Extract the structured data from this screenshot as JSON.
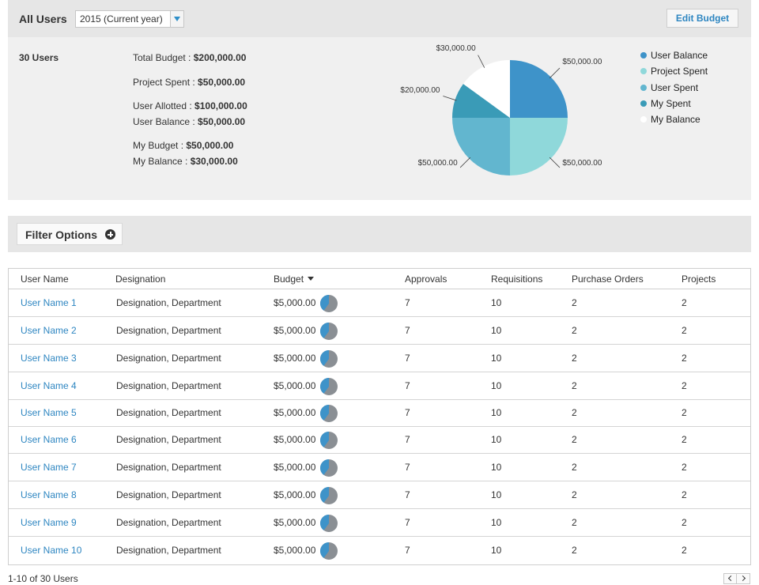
{
  "header": {
    "title": "All Users",
    "year_select": {
      "value": "2015 (Current year)"
    },
    "edit_button": "Edit Budget"
  },
  "summary": {
    "user_count": "30 Users",
    "stats": [
      {
        "label": "Total Budget : ",
        "value": "$200,000.00"
      },
      {
        "label": "Project Spent : ",
        "value": "$50,000.00"
      },
      {
        "label": "User Allotted : ",
        "value": "$100,000.00"
      },
      {
        "label": "User Balance : ",
        "value": "$50,000.00"
      },
      {
        "label": "My Budget : ",
        "value": "$50,000.00"
      },
      {
        "label": "My Balance : ",
        "value": "$30,000.00"
      }
    ]
  },
  "chart_data": {
    "type": "pie",
    "title": "",
    "slices": [
      {
        "name": "User Balance",
        "value": 50000,
        "label": "$50,000.00",
        "color": "#3e93c9"
      },
      {
        "name": "Project Spent",
        "value": 50000,
        "label": "$50,000.00",
        "color": "#8fd8da"
      },
      {
        "name": "User Spent",
        "value": 50000,
        "label": "$50,000.00",
        "color": "#62b6cf"
      },
      {
        "name": "My Spent",
        "value": 20000,
        "label": "$20,000.00",
        "color": "#3a9bb7"
      },
      {
        "name": "My Balance",
        "value": 30000,
        "label": "$30,000.00",
        "color": "#ffffff"
      }
    ],
    "legend_position": "right"
  },
  "filter": {
    "label": "Filter Options",
    "icon": "plus-circle-icon"
  },
  "table": {
    "columns": [
      "User Name",
      "Designation",
      "Budget",
      "Approvals",
      "Requisitions",
      "Purchase Orders",
      "Projects"
    ],
    "rows": [
      {
        "name": "User Name 1",
        "designation": "Designation, Department",
        "budget": "$5,000.00",
        "budget_used_fraction": 0.4,
        "approvals": "7",
        "requisitions": "10",
        "purchase_orders": "2",
        "projects": "2"
      },
      {
        "name": "User Name 2",
        "designation": "Designation, Department",
        "budget": "$5,000.00",
        "budget_used_fraction": 0.4,
        "approvals": "7",
        "requisitions": "10",
        "purchase_orders": "2",
        "projects": "2"
      },
      {
        "name": "User Name 3",
        "designation": "Designation, Department",
        "budget": "$5,000.00",
        "budget_used_fraction": 0.4,
        "approvals": "7",
        "requisitions": "10",
        "purchase_orders": "2",
        "projects": "2"
      },
      {
        "name": "User Name 4",
        "designation": "Designation, Department",
        "budget": "$5,000.00",
        "budget_used_fraction": 0.4,
        "approvals": "7",
        "requisitions": "10",
        "purchase_orders": "2",
        "projects": "2"
      },
      {
        "name": "User Name 5",
        "designation": "Designation, Department",
        "budget": "$5,000.00",
        "budget_used_fraction": 0.4,
        "approvals": "7",
        "requisitions": "10",
        "purchase_orders": "2",
        "projects": "2"
      },
      {
        "name": "User Name 6",
        "designation": "Designation, Department",
        "budget": "$5,000.00",
        "budget_used_fraction": 0.4,
        "approvals": "7",
        "requisitions": "10",
        "purchase_orders": "2",
        "projects": "2"
      },
      {
        "name": "User Name 7",
        "designation": "Designation, Department",
        "budget": "$5,000.00",
        "budget_used_fraction": 0.4,
        "approvals": "7",
        "requisitions": "10",
        "purchase_orders": "2",
        "projects": "2"
      },
      {
        "name": "User Name 8",
        "designation": "Designation, Department",
        "budget": "$5,000.00",
        "budget_used_fraction": 0.4,
        "approvals": "7",
        "requisitions": "10",
        "purchase_orders": "2",
        "projects": "2"
      },
      {
        "name": "User Name 9",
        "designation": "Designation, Department",
        "budget": "$5,000.00",
        "budget_used_fraction": 0.4,
        "approvals": "7",
        "requisitions": "10",
        "purchase_orders": "2",
        "projects": "2"
      },
      {
        "name": "User Name 10",
        "designation": "Designation, Department",
        "budget": "$5,000.00",
        "budget_used_fraction": 0.4,
        "approvals": "7",
        "requisitions": "10",
        "purchase_orders": "2",
        "projects": "2"
      }
    ]
  },
  "pager": {
    "text": "1-10 of 30 Users"
  },
  "colors": {
    "accent": "#2e86c1",
    "panel": "#f0f0f0",
    "bar": "#e6e6e6"
  }
}
